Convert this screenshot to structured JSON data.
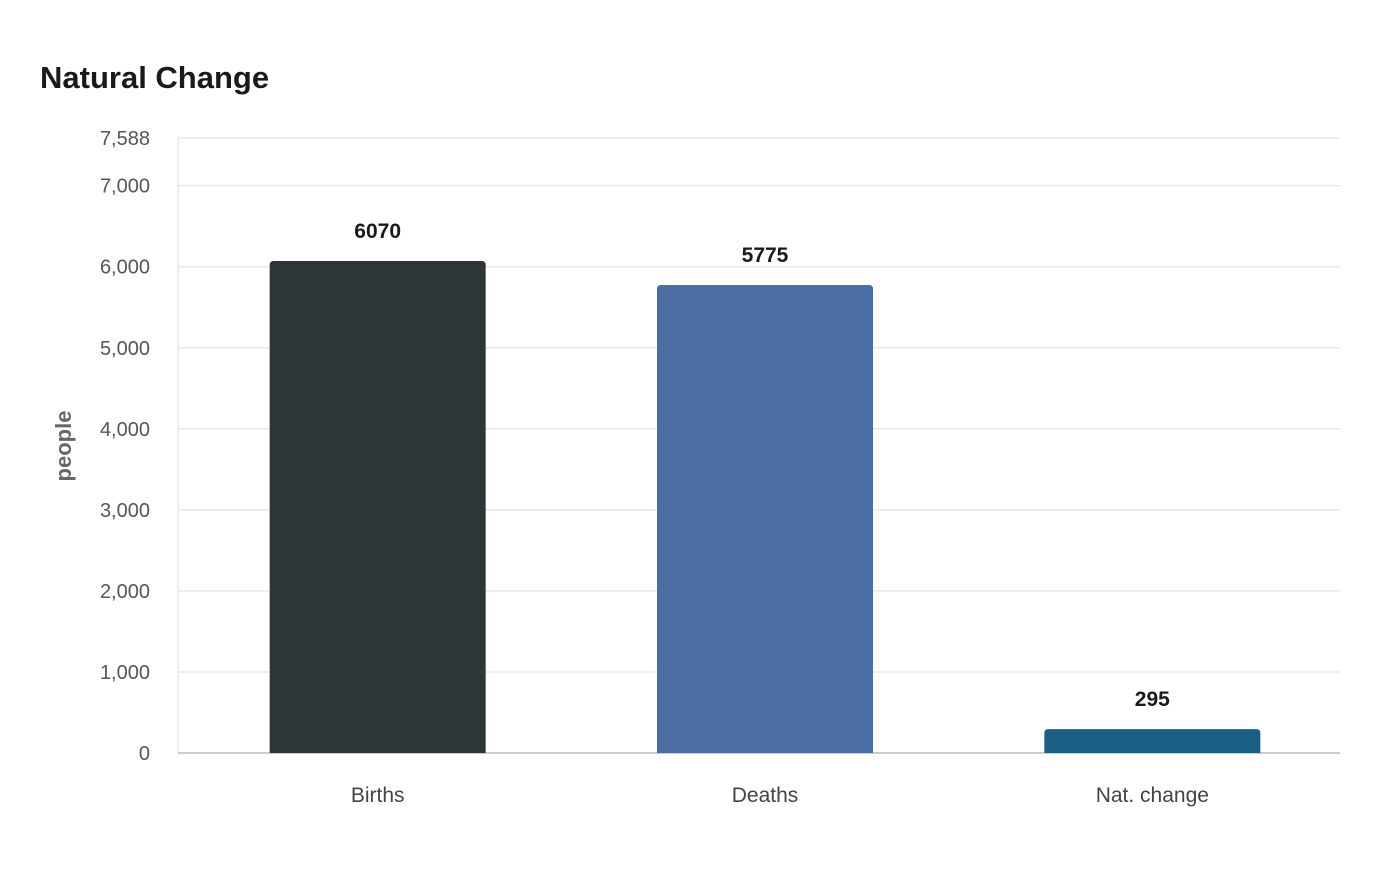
{
  "chart_data": {
    "type": "bar",
    "title": "Natural Change",
    "xlabel": "",
    "ylabel": "people",
    "categories": [
      "Births",
      "Deaths",
      "Nat. change"
    ],
    "values": [
      6070,
      5775,
      295
    ],
    "data_labels": [
      "6070",
      "5775",
      "295"
    ],
    "colors": [
      "#2e3538",
      "#4a6ea3",
      "#1b5f87"
    ],
    "ylim": [
      0,
      7588
    ],
    "yticks": [
      0,
      1000,
      2000,
      3000,
      4000,
      5000,
      6000,
      7000,
      7588
    ],
    "ytick_labels": [
      "0",
      "1,000",
      "2,000",
      "3,000",
      "4,000",
      "5,000",
      "6,000",
      "7,000",
      "7,588"
    ],
    "grid": true,
    "legend": "none",
    "grid_color": "#e8e8e8",
    "axis_color": "#cccccc"
  }
}
